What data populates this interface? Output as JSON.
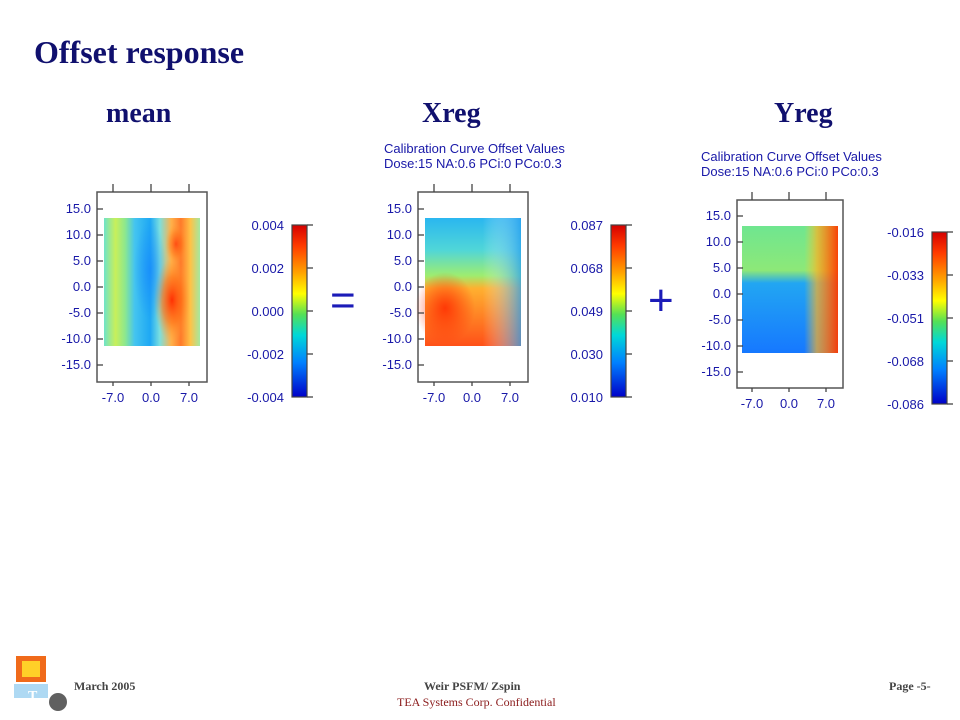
{
  "slide": {
    "title": "Offset response",
    "columns": [
      "mean",
      "Xreg",
      "Yreg"
    ],
    "operators": {
      "equals": "=",
      "plus": "+"
    }
  },
  "charts": {
    "mean": {
      "caption": [
        "",
        ""
      ],
      "y_ticks": [
        "15.0",
        "10.0",
        "5.0",
        "0.0",
        "-5.0",
        "-10.0",
        "-15.0"
      ],
      "x_ticks": [
        "-7.0",
        "0.0",
        "7.0"
      ],
      "colorbar_ticks": [
        "0.004",
        "0.002",
        "0.000",
        "-0.002",
        "-0.004"
      ]
    },
    "xreg": {
      "caption": [
        "Calibration Curve Offset Values",
        "Dose:15 NA:0.6 PCi:0 PCo:0.3"
      ],
      "y_ticks": [
        "15.0",
        "10.0",
        "5.0",
        "0.0",
        "-5.0",
        "-10.0",
        "-15.0"
      ],
      "x_ticks": [
        "-7.0",
        "0.0",
        "7.0"
      ],
      "colorbar_ticks": [
        "0.087",
        "0.068",
        "0.049",
        "0.030",
        "0.010"
      ]
    },
    "yreg": {
      "caption": [
        "Calibration Curve Offset Values",
        "Dose:15 NA:0.6 PCi:0 PCo:0.3"
      ],
      "y_ticks": [
        "15.0",
        "10.0",
        "5.0",
        "0.0",
        "-5.0",
        "-10.0",
        "-15.0"
      ],
      "x_ticks": [
        "-7.0",
        "0.0",
        "7.0"
      ],
      "colorbar_ticks": [
        "-0.016",
        "-0.033",
        "-0.051",
        "-0.068",
        "-0.086"
      ]
    }
  },
  "footer": {
    "date": "March 2005",
    "center_line1": "Weir PSFM/ Zspin",
    "center_line2": "TEA Systems Corp. Confidential",
    "page": "Page -5-"
  }
}
